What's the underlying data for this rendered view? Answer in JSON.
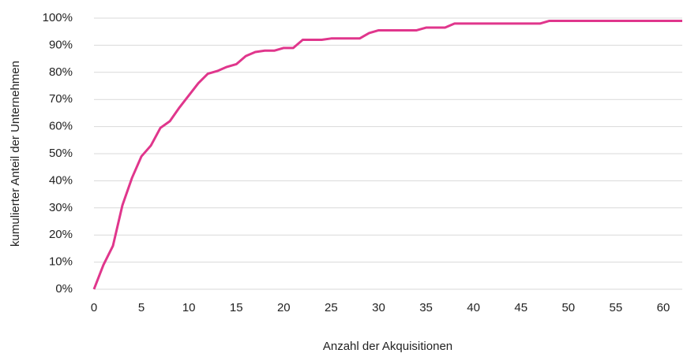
{
  "chart_data": {
    "type": "line",
    "xlabel": "Anzahl der Akquisitionen",
    "ylabel": "kumulierter Anteil der Unternehmen",
    "x": [
      0,
      1,
      2,
      3,
      4,
      5,
      6,
      7,
      8,
      9,
      10,
      11,
      12,
      13,
      14,
      15,
      16,
      17,
      18,
      19,
      20,
      21,
      22,
      23,
      24,
      25,
      26,
      27,
      28,
      29,
      30,
      31,
      32,
      33,
      34,
      35,
      36,
      37,
      38,
      39,
      40,
      41,
      42,
      43,
      44,
      45,
      46,
      47,
      48,
      49,
      50,
      51,
      52,
      53,
      54,
      55,
      56,
      57,
      58,
      59,
      60,
      61,
      62
    ],
    "series": [
      {
        "name": "kumulierter Anteil",
        "color": "#e0368c",
        "values": [
          0,
          9,
          16,
          31,
          41,
          49,
          53,
          59.5,
          62,
          67,
          71.5,
          76,
          79.5,
          80.5,
          82,
          83,
          86,
          87.5,
          88,
          88,
          89,
          89,
          92,
          92,
          92,
          92.5,
          92.5,
          92.5,
          92.5,
          94.5,
          95.5,
          95.5,
          95.5,
          95.5,
          95.5,
          96.5,
          96.5,
          96.5,
          98,
          98,
          98,
          98,
          98,
          98,
          98,
          98,
          98,
          98,
          99,
          99,
          99,
          99,
          99,
          99,
          99,
          99,
          99,
          99,
          99,
          99,
          99,
          99,
          99
        ]
      }
    ],
    "xlim": [
      0,
      62
    ],
    "xticks": [
      0,
      5,
      10,
      15,
      20,
      25,
      30,
      35,
      40,
      45,
      50,
      55,
      60
    ],
    "ylim": [
      0,
      100
    ],
    "yticks": [
      {
        "value": 0,
        "label": "0%"
      },
      {
        "value": 10,
        "label": "10%"
      },
      {
        "value": 20,
        "label": "20%"
      },
      {
        "value": 30,
        "label": "30%"
      },
      {
        "value": 40,
        "label": "40%"
      },
      {
        "value": 50,
        "label": "50%"
      },
      {
        "value": 60,
        "label": "60%"
      },
      {
        "value": 70,
        "label": "70%"
      },
      {
        "value": 80,
        "label": "80%"
      },
      {
        "value": 90,
        "label": "90%"
      },
      {
        "value": 100,
        "label": "100%"
      }
    ],
    "grid": true
  }
}
